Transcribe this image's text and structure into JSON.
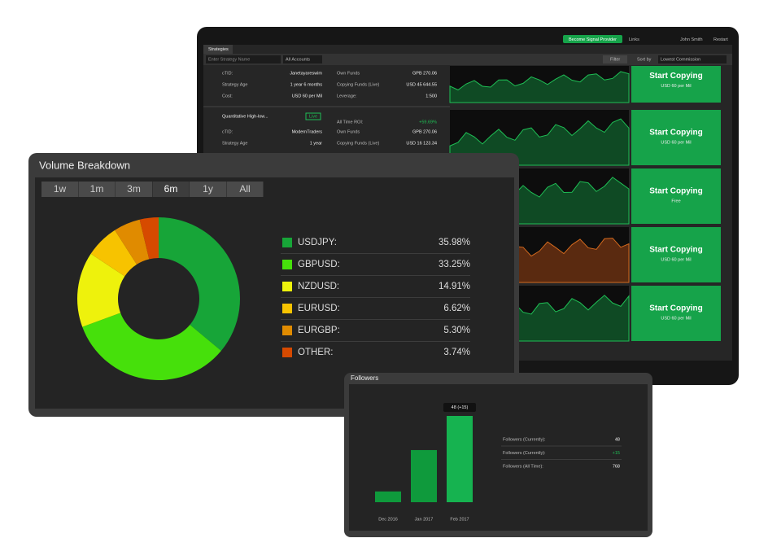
{
  "strategies": {
    "tab": "Strategies",
    "top_links": [
      "Links",
      "John Smith",
      "Restart"
    ],
    "signal_button": "Become Signal Provider",
    "search_placeholder": "Enter Strategy Name",
    "accounts": "All Accounts",
    "filter": "Filter",
    "sort_label": "Sort by",
    "sort_value": "Lowest Commission",
    "rows": [
      {
        "fields": [
          [
            "cTID:",
            "Janetayareswim"
          ],
          [
            "Strategy Age",
            "1 year 6 months"
          ],
          [
            "Cost:",
            "USD 60 per Mil"
          ]
        ],
        "funds": [
          [
            "Own Funds",
            "GPB 270.06"
          ],
          [
            "Copying Funds (Live)",
            "USD 45 644.55"
          ],
          [
            "Leverage:",
            "1:500"
          ]
        ]
      },
      {
        "name": "Quantitative High-low...",
        "badge": "Live",
        "roi": [
          "All Time ROI:",
          "+59.69%"
        ],
        "fields": [
          [
            "cTID:",
            "ModernTraders"
          ],
          [
            "Strategy Age",
            "1 year"
          ]
        ],
        "funds": [
          [
            "Own Funds",
            "GPB 270.06"
          ],
          [
            "Copying Funds (Live)",
            "USD 16 123.34"
          ]
        ]
      }
    ],
    "buttons": [
      {
        "title": "Start Copying",
        "sub": "USD 60 per Mil"
      },
      {
        "title": "Start Copying",
        "sub": "USD 60 per Mil"
      },
      {
        "title": "Start Copying",
        "sub": "Free"
      },
      {
        "title": "Start Copying",
        "sub": "USD 60 per Mil"
      },
      {
        "title": "Start Copying",
        "sub": "USD 60 per Mil"
      }
    ]
  },
  "volume_breakdown": {
    "title": "Volume Breakdown",
    "ranges": [
      "1w",
      "1m",
      "3m",
      "6m",
      "1y",
      "All"
    ],
    "selected_range": "6m",
    "chart_data": {
      "type": "pie",
      "categories": [
        "USDJPY:",
        "GBPUSD:",
        "NZDUSD:",
        "EURUSD:",
        "EURGBP:",
        "OTHER:"
      ],
      "values": [
        35.98,
        33.25,
        14.91,
        6.62,
        5.3,
        3.74
      ],
      "value_labels": [
        "35.98%",
        "33.25%",
        "14.91%",
        "6.62%",
        "5.30%",
        "3.74%"
      ],
      "colors": [
        "#17a538",
        "#46e00b",
        "#eef20c",
        "#f7c300",
        "#e08b00",
        "#d64a00"
      ],
      "donut": true
    }
  },
  "followers": {
    "title": "Followers",
    "chart_data": {
      "type": "bar",
      "categories": [
        "Dec 2016",
        "Jan 2017",
        "Feb 2017"
      ],
      "values": [
        6,
        29,
        48
      ],
      "value_labels": [
        null,
        null,
        "48 (+15)"
      ],
      "colors": [
        "#0f9a3c",
        "#0f9a3c",
        "#16b350"
      ],
      "ylim": [
        0,
        48
      ]
    },
    "stats": [
      [
        "Followers (Currently):",
        "48"
      ],
      [
        "Followers (Currently):",
        "+15"
      ],
      [
        "Followers (All Time):",
        "768"
      ]
    ]
  }
}
